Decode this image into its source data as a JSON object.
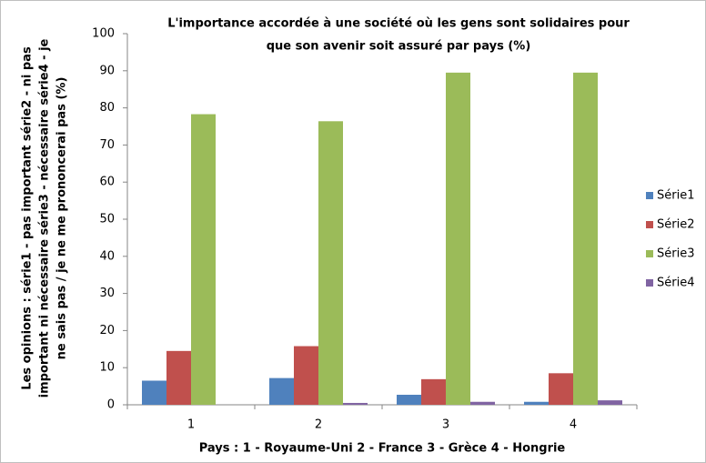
{
  "chart_data": {
    "type": "bar",
    "title": [
      "L'importance accordée à une société où les gens sont solidaires pour",
      "que son avenir soit assuré par pays (%)"
    ],
    "x_label": "Pays : 1 - Royaume-Uni  2 - France 3 - Grèce  4 - Hongrie",
    "y_label": [
      "Les opinions : série1 - pas important série2 - ni pas",
      "important ni nécessaire série3 - nécessaire série4 - je",
      "ne sais pas / je ne me prononcerai pas (%)"
    ],
    "categories": [
      "1",
      "2",
      "3",
      "4"
    ],
    "series": [
      {
        "name": "Série1",
        "color": "#4f81bd",
        "values": [
          6.5,
          7.2,
          2.7,
          0.8
        ]
      },
      {
        "name": "Série2",
        "color": "#c0504d",
        "values": [
          14.5,
          15.8,
          6.9,
          8.5
        ]
      },
      {
        "name": "Série3",
        "color": "#9bbb59",
        "values": [
          78.3,
          76.4,
          89.5,
          89.5
        ]
      },
      {
        "name": "Série4",
        "color": "#8064a2",
        "values": [
          0,
          0.5,
          0.8,
          1.2
        ]
      }
    ],
    "ylim": [
      0,
      100
    ],
    "yticks": [
      0,
      10,
      20,
      30,
      40,
      50,
      60,
      70,
      80,
      90,
      100
    ],
    "grid": false,
    "legend": "right"
  }
}
